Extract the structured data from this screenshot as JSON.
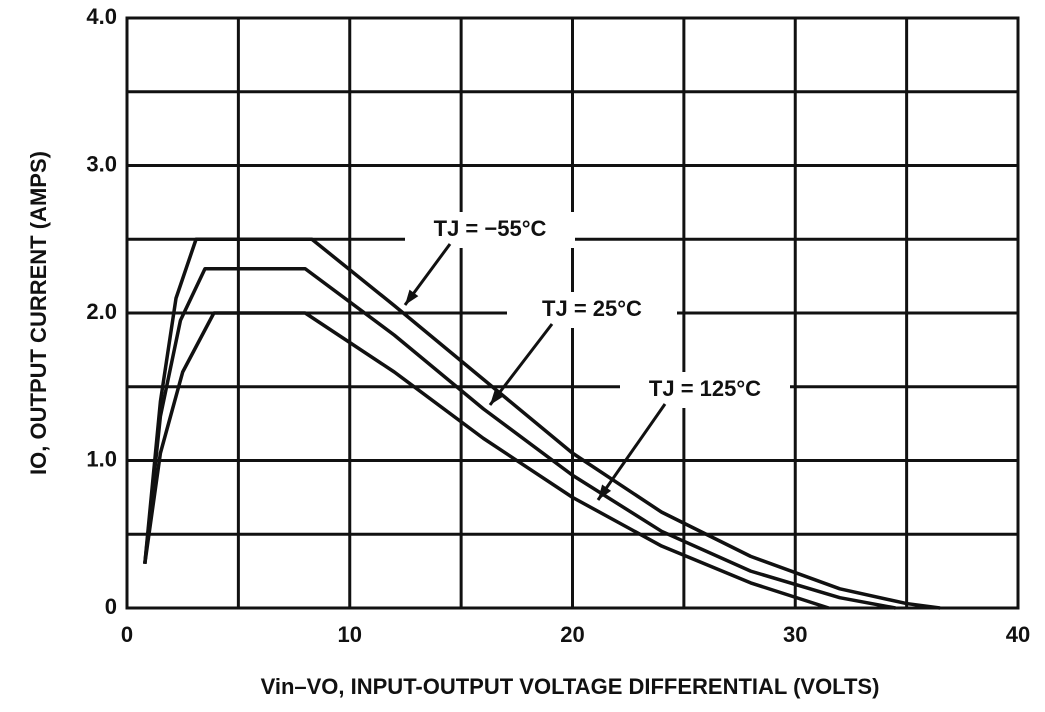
{
  "chart_data": {
    "type": "line",
    "xlabel": "Vin–VO, INPUT-OUTPUT VOLTAGE DIFFERENTIAL (VOLTS)",
    "ylabel": "IO, OUTPUT CURRENT (AMPS)",
    "xlim": [
      0,
      40
    ],
    "ylim": [
      0,
      4
    ],
    "xticks": [
      0,
      10,
      20,
      30,
      40
    ],
    "yticks": [
      0,
      {
        "value": 1,
        "label": "1.0"
      },
      {
        "value": 2,
        "label": "2.0"
      },
      {
        "value": 3,
        "label": "3.0"
      },
      {
        "value": 4,
        "label": "4.0"
      }
    ],
    "xminor": [
      5,
      15,
      25,
      35
    ],
    "yminor": [
      0.5,
      1.5,
      2.5,
      3.5
    ],
    "grid": true,
    "series": [
      {
        "name": "TJ = −55°C",
        "color": "#111111",
        "x": [
          0.8,
          1.5,
          2.2,
          3.1,
          8.3,
          12,
          16,
          20,
          24,
          28,
          32,
          35,
          36.5
        ],
        "values": [
          0.3,
          1.4,
          2.1,
          2.5,
          2.5,
          2.05,
          1.55,
          1.05,
          0.65,
          0.35,
          0.13,
          0.03,
          0
        ]
      },
      {
        "name": "TJ = 25°C",
        "color": "#111111",
        "x": [
          0.8,
          1.5,
          2.4,
          3.5,
          8,
          12,
          16,
          20,
          24,
          28,
          32,
          34.5
        ],
        "values": [
          0.3,
          1.3,
          1.95,
          2.3,
          2.3,
          1.85,
          1.35,
          0.9,
          0.52,
          0.25,
          0.07,
          0
        ]
      },
      {
        "name": "TJ = 125°C",
        "color": "#111111",
        "x": [
          0.8,
          1.5,
          2.5,
          3.9,
          8,
          12,
          16,
          20,
          24,
          28,
          31.5
        ],
        "values": [
          0.3,
          1.05,
          1.6,
          2.0,
          2.0,
          1.6,
          1.15,
          0.75,
          0.42,
          0.17,
          0
        ]
      }
    ]
  }
}
